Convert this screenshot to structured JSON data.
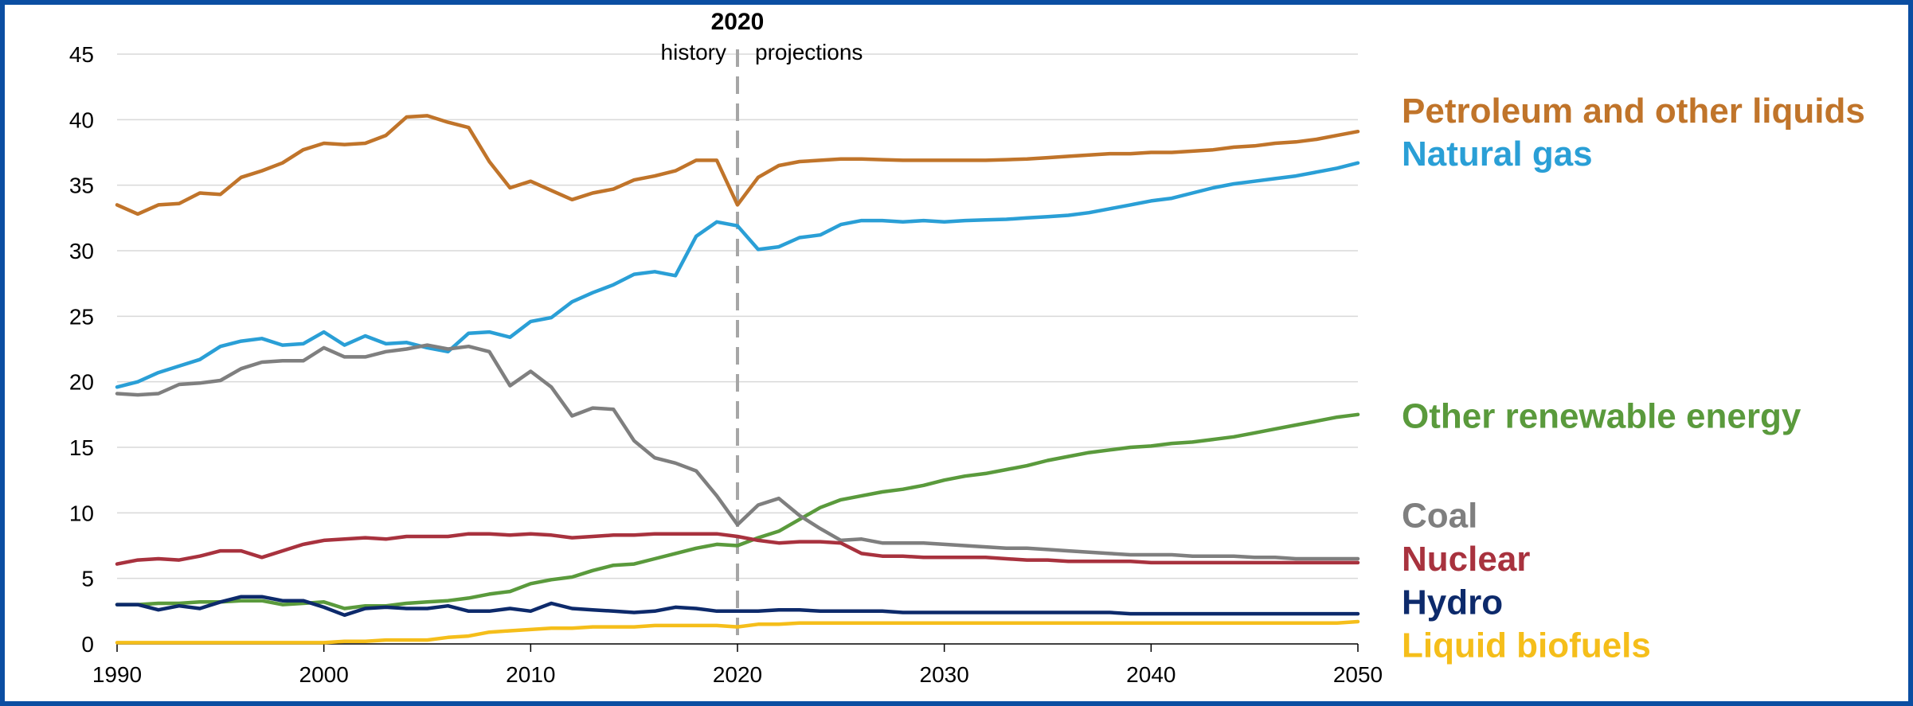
{
  "chart_data": {
    "type": "line",
    "x": [
      1990,
      1991,
      1992,
      1993,
      1994,
      1995,
      1996,
      1997,
      1998,
      1999,
      2000,
      2001,
      2002,
      2003,
      2004,
      2005,
      2006,
      2007,
      2008,
      2009,
      2010,
      2011,
      2012,
      2013,
      2014,
      2015,
      2016,
      2017,
      2018,
      2019,
      2020,
      2021,
      2022,
      2023,
      2024,
      2025,
      2026,
      2027,
      2028,
      2029,
      2030,
      2031,
      2032,
      2033,
      2034,
      2035,
      2036,
      2037,
      2038,
      2039,
      2040,
      2041,
      2042,
      2043,
      2044,
      2045,
      2046,
      2047,
      2048,
      2049,
      2050
    ],
    "xlim": [
      1990,
      2050
    ],
    "ylim": [
      0,
      45
    ],
    "x_ticks": [
      1990,
      2000,
      2010,
      2020,
      2030,
      2040,
      2050
    ],
    "y_ticks": [
      0,
      5,
      10,
      15,
      20,
      25,
      30,
      35,
      40,
      45
    ],
    "grid": "horizontal",
    "divider": {
      "x": 2020,
      "label": "2020",
      "left_label": "history",
      "right_label": "projections"
    },
    "series": [
      {
        "name": "Petroleum and other liquids",
        "color": "#c0742a",
        "values": [
          33.5,
          32.8,
          33.5,
          33.6,
          34.4,
          34.3,
          35.6,
          36.1,
          36.7,
          37.7,
          38.2,
          38.1,
          38.2,
          38.8,
          40.2,
          40.3,
          39.8,
          39.4,
          36.8,
          34.8,
          35.3,
          34.6,
          33.9,
          34.4,
          34.7,
          35.4,
          35.7,
          36.1,
          36.9,
          36.9,
          33.5,
          35.6,
          36.5,
          36.8,
          36.9,
          37.0,
          37.0,
          36.95,
          36.9,
          36.9,
          36.9,
          36.9,
          36.9,
          36.95,
          37.0,
          37.1,
          37.2,
          37.3,
          37.4,
          37.4,
          37.5,
          37.5,
          37.6,
          37.7,
          37.9,
          38.0,
          38.2,
          38.3,
          38.5,
          38.8,
          39.1
        ]
      },
      {
        "name": "Natural gas",
        "color": "#2a9fd6",
        "values": [
          19.6,
          20.0,
          20.7,
          21.2,
          21.7,
          22.7,
          23.1,
          23.3,
          22.8,
          22.9,
          23.8,
          22.8,
          23.5,
          22.9,
          23.0,
          22.6,
          22.3,
          23.7,
          23.8,
          23.4,
          24.6,
          24.9,
          26.1,
          26.8,
          27.4,
          28.2,
          28.4,
          28.1,
          31.1,
          32.2,
          31.9,
          30.1,
          30.3,
          31.0,
          31.2,
          32.0,
          32.3,
          32.3,
          32.2,
          32.3,
          32.2,
          32.3,
          32.35,
          32.4,
          32.5,
          32.6,
          32.7,
          32.9,
          33.2,
          33.5,
          33.8,
          34.0,
          34.4,
          34.8,
          35.1,
          35.3,
          35.5,
          35.7,
          36.0,
          36.3,
          36.7
        ]
      },
      {
        "name": "Other renewable energy",
        "color": "#5a9a3c",
        "values": [
          3.0,
          3.0,
          3.1,
          3.1,
          3.2,
          3.2,
          3.3,
          3.3,
          3.0,
          3.1,
          3.2,
          2.7,
          2.9,
          2.9,
          3.1,
          3.2,
          3.3,
          3.5,
          3.8,
          4.0,
          4.6,
          4.9,
          5.1,
          5.6,
          6.0,
          6.1,
          6.5,
          6.9,
          7.3,
          7.6,
          7.5,
          8.1,
          8.6,
          9.5,
          10.4,
          11.0,
          11.3,
          11.6,
          11.8,
          12.1,
          12.5,
          12.8,
          13.0,
          13.3,
          13.6,
          14.0,
          14.3,
          14.6,
          14.8,
          15.0,
          15.1,
          15.3,
          15.4,
          15.6,
          15.8,
          16.1,
          16.4,
          16.7,
          17.0,
          17.3,
          17.5
        ]
      },
      {
        "name": "Coal",
        "color": "#7f7f7f",
        "values": [
          19.1,
          19.0,
          19.1,
          19.8,
          19.9,
          20.1,
          21.0,
          21.5,
          21.6,
          21.6,
          22.6,
          21.9,
          21.9,
          22.3,
          22.5,
          22.8,
          22.5,
          22.7,
          22.3,
          19.7,
          20.8,
          19.6,
          17.4,
          18.0,
          17.9,
          15.5,
          14.2,
          13.8,
          13.2,
          11.3,
          9.1,
          10.6,
          11.1,
          9.8,
          8.8,
          7.9,
          8.0,
          7.7,
          7.7,
          7.7,
          7.6,
          7.5,
          7.4,
          7.3,
          7.3,
          7.2,
          7.1,
          7.0,
          6.9,
          6.8,
          6.8,
          6.8,
          6.7,
          6.7,
          6.7,
          6.6,
          6.6,
          6.5,
          6.5,
          6.5,
          6.5
        ]
      },
      {
        "name": "Nuclear",
        "color": "#a8323e",
        "values": [
          6.1,
          6.4,
          6.5,
          6.4,
          6.7,
          7.1,
          7.1,
          6.6,
          7.1,
          7.6,
          7.9,
          8.0,
          8.1,
          8.0,
          8.2,
          8.2,
          8.2,
          8.4,
          8.4,
          8.3,
          8.4,
          8.3,
          8.1,
          8.2,
          8.3,
          8.3,
          8.4,
          8.4,
          8.4,
          8.4,
          8.2,
          7.9,
          7.7,
          7.8,
          7.8,
          7.7,
          6.9,
          6.7,
          6.7,
          6.6,
          6.6,
          6.6,
          6.6,
          6.5,
          6.4,
          6.4,
          6.3,
          6.3,
          6.3,
          6.3,
          6.2,
          6.2,
          6.2,
          6.2,
          6.2,
          6.2,
          6.2,
          6.2,
          6.2,
          6.2,
          6.2
        ]
      },
      {
        "name": "Hydro",
        "color": "#0d2a6b",
        "values": [
          3.0,
          3.0,
          2.6,
          2.9,
          2.7,
          3.2,
          3.6,
          3.6,
          3.3,
          3.3,
          2.8,
          2.2,
          2.7,
          2.8,
          2.7,
          2.7,
          2.9,
          2.5,
          2.5,
          2.7,
          2.5,
          3.1,
          2.7,
          2.6,
          2.5,
          2.4,
          2.5,
          2.8,
          2.7,
          2.5,
          2.5,
          2.5,
          2.6,
          2.6,
          2.5,
          2.5,
          2.5,
          2.5,
          2.4,
          2.4,
          2.4,
          2.4,
          2.4,
          2.4,
          2.4,
          2.4,
          2.4,
          2.4,
          2.4,
          2.3,
          2.3,
          2.3,
          2.3,
          2.3,
          2.3,
          2.3,
          2.3,
          2.3,
          2.3,
          2.3,
          2.3
        ]
      },
      {
        "name": "Liquid biofuels",
        "color": "#f5be1a",
        "values": [
          0.1,
          0.1,
          0.1,
          0.1,
          0.1,
          0.1,
          0.1,
          0.1,
          0.1,
          0.1,
          0.1,
          0.2,
          0.2,
          0.3,
          0.3,
          0.3,
          0.5,
          0.6,
          0.9,
          1.0,
          1.1,
          1.2,
          1.2,
          1.3,
          1.3,
          1.3,
          1.4,
          1.4,
          1.4,
          1.4,
          1.3,
          1.5,
          1.5,
          1.6,
          1.6,
          1.6,
          1.6,
          1.6,
          1.6,
          1.6,
          1.6,
          1.6,
          1.6,
          1.6,
          1.6,
          1.6,
          1.6,
          1.6,
          1.6,
          1.6,
          1.6,
          1.6,
          1.6,
          1.6,
          1.6,
          1.6,
          1.6,
          1.6,
          1.6,
          1.6,
          1.7
        ]
      }
    ],
    "label_values": {
      "Petroleum and other liquids": 40.7,
      "Natural gas": 37.4,
      "Other renewable energy": 17.4,
      "Coal": 9.8,
      "Nuclear": 6.5,
      "Hydro": 3.2,
      "Liquid biofuels": -0.1
    }
  }
}
